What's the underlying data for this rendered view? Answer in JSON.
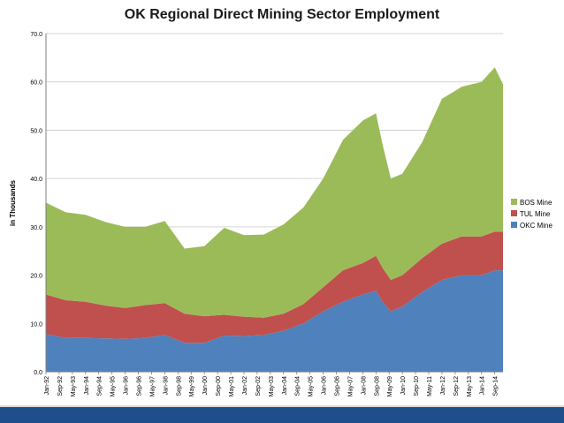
{
  "chart_data": {
    "type": "area",
    "stacked": true,
    "title": "OK Regional Direct Mining Sector Employment",
    "xlabel": "",
    "ylabel": "in Thousands",
    "ylim": [
      0,
      70
    ],
    "yticks": [
      "0.0",
      "10.0",
      "20.0",
      "30.0",
      "40.0",
      "50.0",
      "60.0",
      "70.0"
    ],
    "xticks": [
      "Jan-92",
      "Sep-92",
      "May-93",
      "Jan-94",
      "Sep-94",
      "May-95",
      "Jan-96",
      "Sep-96",
      "May-97",
      "Jan-98",
      "Sep-98",
      "May-99",
      "Jan-00",
      "Sep-00",
      "May-01",
      "Jan-02",
      "Sep-02",
      "May-03",
      "Jan-04",
      "Sep-04",
      "May-05",
      "Jan-06",
      "Sep-06",
      "May-07",
      "Jan-08",
      "Sep-08",
      "May-09",
      "Jan-10",
      "Sep-10",
      "May-11",
      "Jan-12",
      "Sep-12",
      "May-13",
      "Jan-14",
      "Sep-14"
    ],
    "grid": true,
    "legend_position": "right",
    "x": [
      "Jan-92",
      "Jan-93",
      "Jan-94",
      "Jan-95",
      "Jan-96",
      "Jan-97",
      "Jan-98",
      "Jan-99",
      "Jan-00",
      "Jan-01",
      "Jan-02",
      "Jan-03",
      "Jan-04",
      "Jan-05",
      "Jan-06",
      "Jan-07",
      "Jan-08",
      "Sep-08",
      "Jan-09",
      "Jun-09",
      "Jan-10",
      "Jan-11",
      "Jan-12",
      "Jan-13",
      "Jan-14",
      "Sep-14",
      "Feb-15"
    ],
    "series": [
      {
        "name": "OKC Mine",
        "color": "#4f81bd",
        "values": [
          7.8,
          7.0,
          7.0,
          6.9,
          6.8,
          7.0,
          7.6,
          6.0,
          6.0,
          7.5,
          7.4,
          7.6,
          8.5,
          10.0,
          12.5,
          14.5,
          16.0,
          16.8,
          14.5,
          12.5,
          13.5,
          16.5,
          19.0,
          20.0,
          20.0,
          21.0,
          21.0
        ]
      },
      {
        "name": "TUL Mine",
        "color": "#c0504d",
        "values": [
          8.2,
          7.8,
          7.5,
          6.8,
          6.4,
          6.8,
          6.6,
          6.0,
          5.5,
          4.3,
          4.0,
          3.6,
          3.5,
          4.0,
          5.0,
          6.5,
          6.5,
          7.2,
          7.0,
          6.5,
          6.5,
          7.0,
          7.5,
          8.0,
          8.0,
          8.0,
          8.0
        ]
      },
      {
        "name": "BOS Mine",
        "color": "#9bbb59",
        "values": [
          19.0,
          18.2,
          18.0,
          17.3,
          16.8,
          16.2,
          17.0,
          13.5,
          14.5,
          18.0,
          16.9,
          17.2,
          18.5,
          20.0,
          22.5,
          27.0,
          29.5,
          29.5,
          25.5,
          21.0,
          21.0,
          24.0,
          30.0,
          31.0,
          32.0,
          34.0,
          30.5
        ]
      }
    ]
  }
}
